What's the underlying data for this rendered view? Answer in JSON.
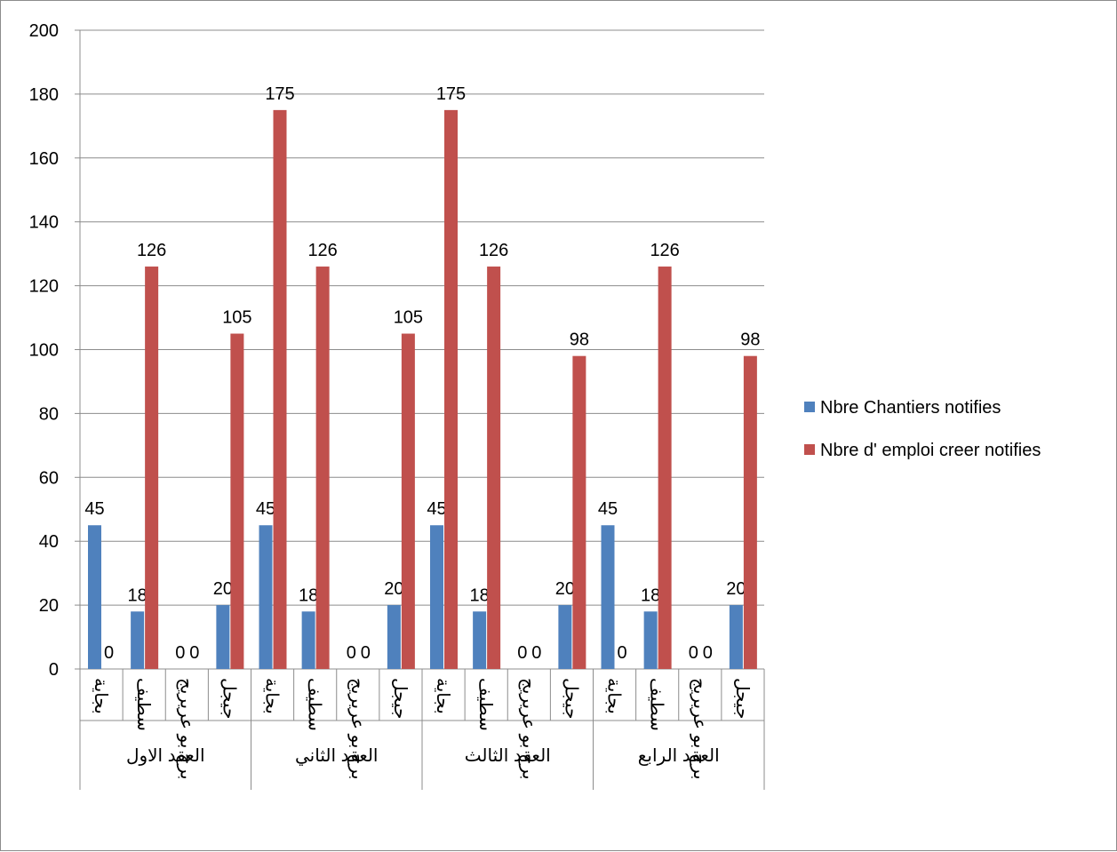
{
  "chart_data": {
    "type": "bar",
    "ylim": [
      0,
      200
    ],
    "yticks": [
      0,
      20,
      40,
      60,
      80,
      100,
      120,
      140,
      160,
      180,
      200
    ],
    "grid": true,
    "legend_position": "right",
    "groups": [
      {
        "label": "العقد الاول",
        "categories": [
          "بجاية",
          "سطيف",
          "برج بو عريريج",
          "جيجل"
        ]
      },
      {
        "label": "العقد الثاني",
        "categories": [
          "بجاية",
          "سطيف",
          "برج بو عريريج",
          "جيجل"
        ]
      },
      {
        "label": "العقد الثالث",
        "categories": [
          "بجاية",
          "سطيف",
          "برج بو عريريج",
          "جيجل"
        ]
      },
      {
        "label": "العقد الرابع",
        "categories": [
          "بجاية",
          "سطيف",
          "برج بو عريريج",
          "جيجل"
        ]
      }
    ],
    "series": [
      {
        "name": "Nbre Chantiers notifies",
        "color": "#4f81bd",
        "values": [
          45,
          18,
          0,
          20,
          45,
          18,
          0,
          20,
          45,
          18,
          0,
          20,
          45,
          18,
          0,
          20
        ],
        "data_labels": [
          "45",
          "18",
          "0",
          "20",
          "45",
          "18",
          "0",
          "20",
          "45",
          "18",
          "0",
          "20",
          "45",
          "18",
          "0",
          "20"
        ]
      },
      {
        "name": "Nbre d' emploi creer notifies",
        "color": "#c0504d",
        "values": [
          0,
          126,
          0,
          105,
          175,
          126,
          0,
          105,
          175,
          126,
          0,
          98,
          0,
          126,
          0,
          98
        ],
        "data_labels": [
          "0",
          "126",
          "0",
          "105",
          "175",
          "126",
          "0",
          "105",
          "175",
          "126",
          "0",
          "98",
          "0",
          "126",
          "0",
          "98"
        ]
      }
    ]
  }
}
